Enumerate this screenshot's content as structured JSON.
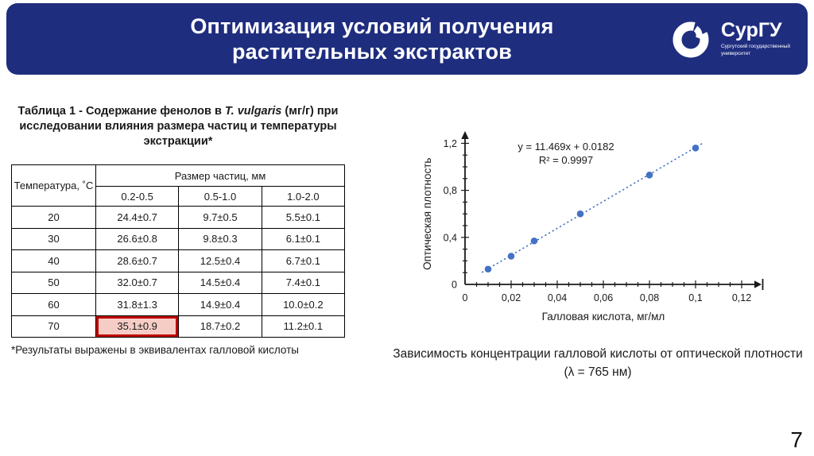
{
  "slide": {
    "title_line1": "Оптимизация условий получения",
    "title_line2": "растительных экстрактов",
    "page_number": "7"
  },
  "logo": {
    "name": "СурГУ",
    "tagline_line1": "Сургутский государственный",
    "tagline_line2": "университет"
  },
  "table": {
    "caption_prefix": "Таблица 1 - Содержание фенолов в ",
    "caption_species": "T. vulgaris",
    "caption_suffix": " (мг/г) при исследовании влияния размера частиц и температуры экстракции*",
    "corner_header": "Температура, ˚C",
    "group_header": "Размер частиц, мм",
    "size_columns": [
      "0.2-0.5",
      "0.5-1.0",
      "1.0-2.0"
    ],
    "rows": [
      {
        "temperature": "20",
        "values": [
          "24.4±0.7",
          "9.7±0.5",
          "5.5±0.1"
        ]
      },
      {
        "temperature": "30",
        "values": [
          "26.6±0.8",
          "9.8±0.3",
          "6.1±0.1"
        ]
      },
      {
        "temperature": "40",
        "values": [
          "28.6±0.7",
          "12.5±0.4",
          "6.7±0.1"
        ]
      },
      {
        "temperature": "50",
        "values": [
          "32.0±0.7",
          "14.5±0.4",
          "7.4±0.1"
        ]
      },
      {
        "temperature": "60",
        "values": [
          "31.8±1.3",
          "14.9±0.4",
          "10.0±0.2"
        ]
      },
      {
        "temperature": "70",
        "values": [
          "35.1±0.9",
          "18.7±0.2",
          "11.2±0.1"
        ]
      }
    ],
    "highlighted_cell": {
      "row_index": 5,
      "col_index": 0,
      "value": "35.1±0.9"
    },
    "footnote": "*Результаты выражены в эквивалентах галловой кислоты"
  },
  "chart_caption": "Зависимость концентрации галловой кислоты от оптической плотности (λ = 765 нм)",
  "chart_data": {
    "type": "scatter",
    "title": "",
    "xlabel": "Галловая кислота, мг/мл",
    "ylabel": "Оптическая плотность",
    "x": [
      0.01,
      0.02,
      0.03,
      0.05,
      0.08,
      0.1
    ],
    "y": [
      0.13,
      0.24,
      0.37,
      0.6,
      0.93,
      1.16
    ],
    "trendline": {
      "equation": "y = 11.469x + 0.0182",
      "r_squared_label": "R² = 0.9997",
      "slope": 11.469,
      "intercept": 0.0182,
      "style": "dotted",
      "x_start": 0.0073,
      "x_end": 0.1035
    },
    "xlim": [
      0,
      0.12
    ],
    "ylim": [
      0,
      1.2
    ],
    "x_ticks": [
      {
        "v": 0,
        "label": "0"
      },
      {
        "v": 0.02,
        "label": "0,02"
      },
      {
        "v": 0.04,
        "label": "0,04"
      },
      {
        "v": 0.06,
        "label": "0,06"
      },
      {
        "v": 0.08,
        "label": "0,08"
      },
      {
        "v": 0.1,
        "label": "0,1"
      },
      {
        "v": 0.12,
        "label": "0,12"
      }
    ],
    "y_ticks": [
      {
        "v": 0,
        "label": "0"
      },
      {
        "v": 0.4,
        "label": "0,4"
      },
      {
        "v": 0.8,
        "label": "0,8"
      },
      {
        "v": 1.2,
        "label": "1,2"
      }
    ],
    "x_minor_step": 0.005,
    "x_major_step": 0.02,
    "y_minor_step": 0.1,
    "y_major_step": 0.4,
    "point_color": "#4472c4",
    "axis_color": "#1a1a1a",
    "grid": false,
    "legend": false
  },
  "colors": {
    "header_bg": "#1f2d7f",
    "highlight_bg": "#f6cdc5",
    "highlight_border": "#c00000"
  }
}
